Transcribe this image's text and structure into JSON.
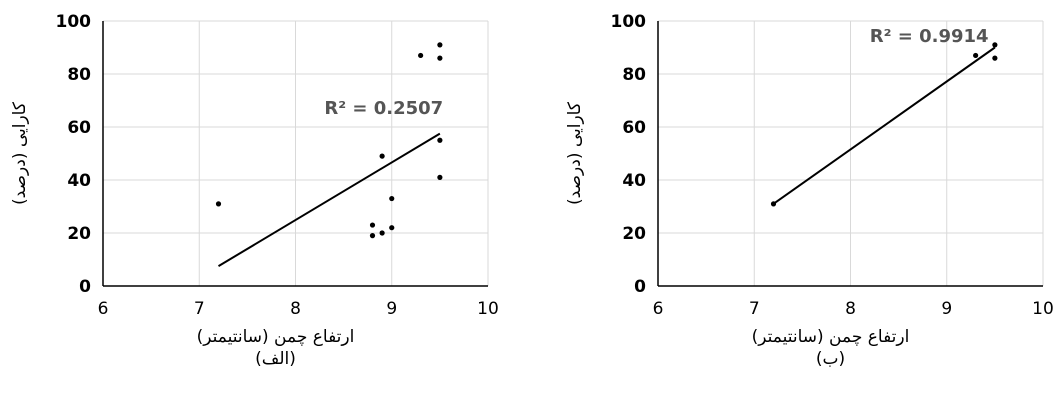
{
  "chart_data": [
    {
      "type": "scatter",
      "panel_caption": "(الف)",
      "xlabel": "ارتفاع چمن (سانتیمتر)",
      "ylabel": "کارایی (درصد)",
      "xlim": [
        6,
        10
      ],
      "ylim": [
        0,
        100
      ],
      "xticks": [
        "6",
        "7",
        "8",
        "9",
        "10"
      ],
      "yticks": [
        "0",
        "20",
        "40",
        "60",
        "80",
        "100"
      ],
      "grid": true,
      "points": [
        {
          "x": 7.2,
          "y": 31
        },
        {
          "x": 8.8,
          "y": 23
        },
        {
          "x": 8.8,
          "y": 19
        },
        {
          "x": 8.9,
          "y": 20
        },
        {
          "x": 8.9,
          "y": 49
        },
        {
          "x": 9.0,
          "y": 22
        },
        {
          "x": 9.0,
          "y": 33
        },
        {
          "x": 9.3,
          "y": 87
        },
        {
          "x": 9.5,
          "y": 91
        },
        {
          "x": 9.5,
          "y": 86
        },
        {
          "x": 9.5,
          "y": 55
        },
        {
          "x": 9.5,
          "y": 41
        }
      ],
      "trendline": {
        "x": [
          7.2,
          9.5
        ],
        "y": [
          7.5,
          57.5
        ]
      },
      "r2_label": "R² = 0.2507",
      "r2_pos": {
        "x": 8.3,
        "y": 65
      }
    },
    {
      "type": "scatter",
      "panel_caption": "(ب)",
      "xlabel": "ارتفاع چمن (سانتیمتر)",
      "ylabel": "کارایی (درصد)",
      "xlim": [
        6,
        10
      ],
      "ylim": [
        0,
        100
      ],
      "xticks": [
        "6",
        "7",
        "8",
        "9",
        "10"
      ],
      "yticks": [
        "0",
        "20",
        "40",
        "60",
        "80",
        "100"
      ],
      "grid": true,
      "points": [
        {
          "x": 7.2,
          "y": 31
        },
        {
          "x": 9.3,
          "y": 87
        },
        {
          "x": 9.5,
          "y": 91
        },
        {
          "x": 9.5,
          "y": 86
        }
      ],
      "trendline": {
        "x": [
          7.2,
          9.5
        ],
        "y": [
          31,
          90
        ]
      },
      "r2_label": "R² = 0.9914",
      "r2_pos": {
        "x": 8.2,
        "y": 92
      }
    }
  ]
}
